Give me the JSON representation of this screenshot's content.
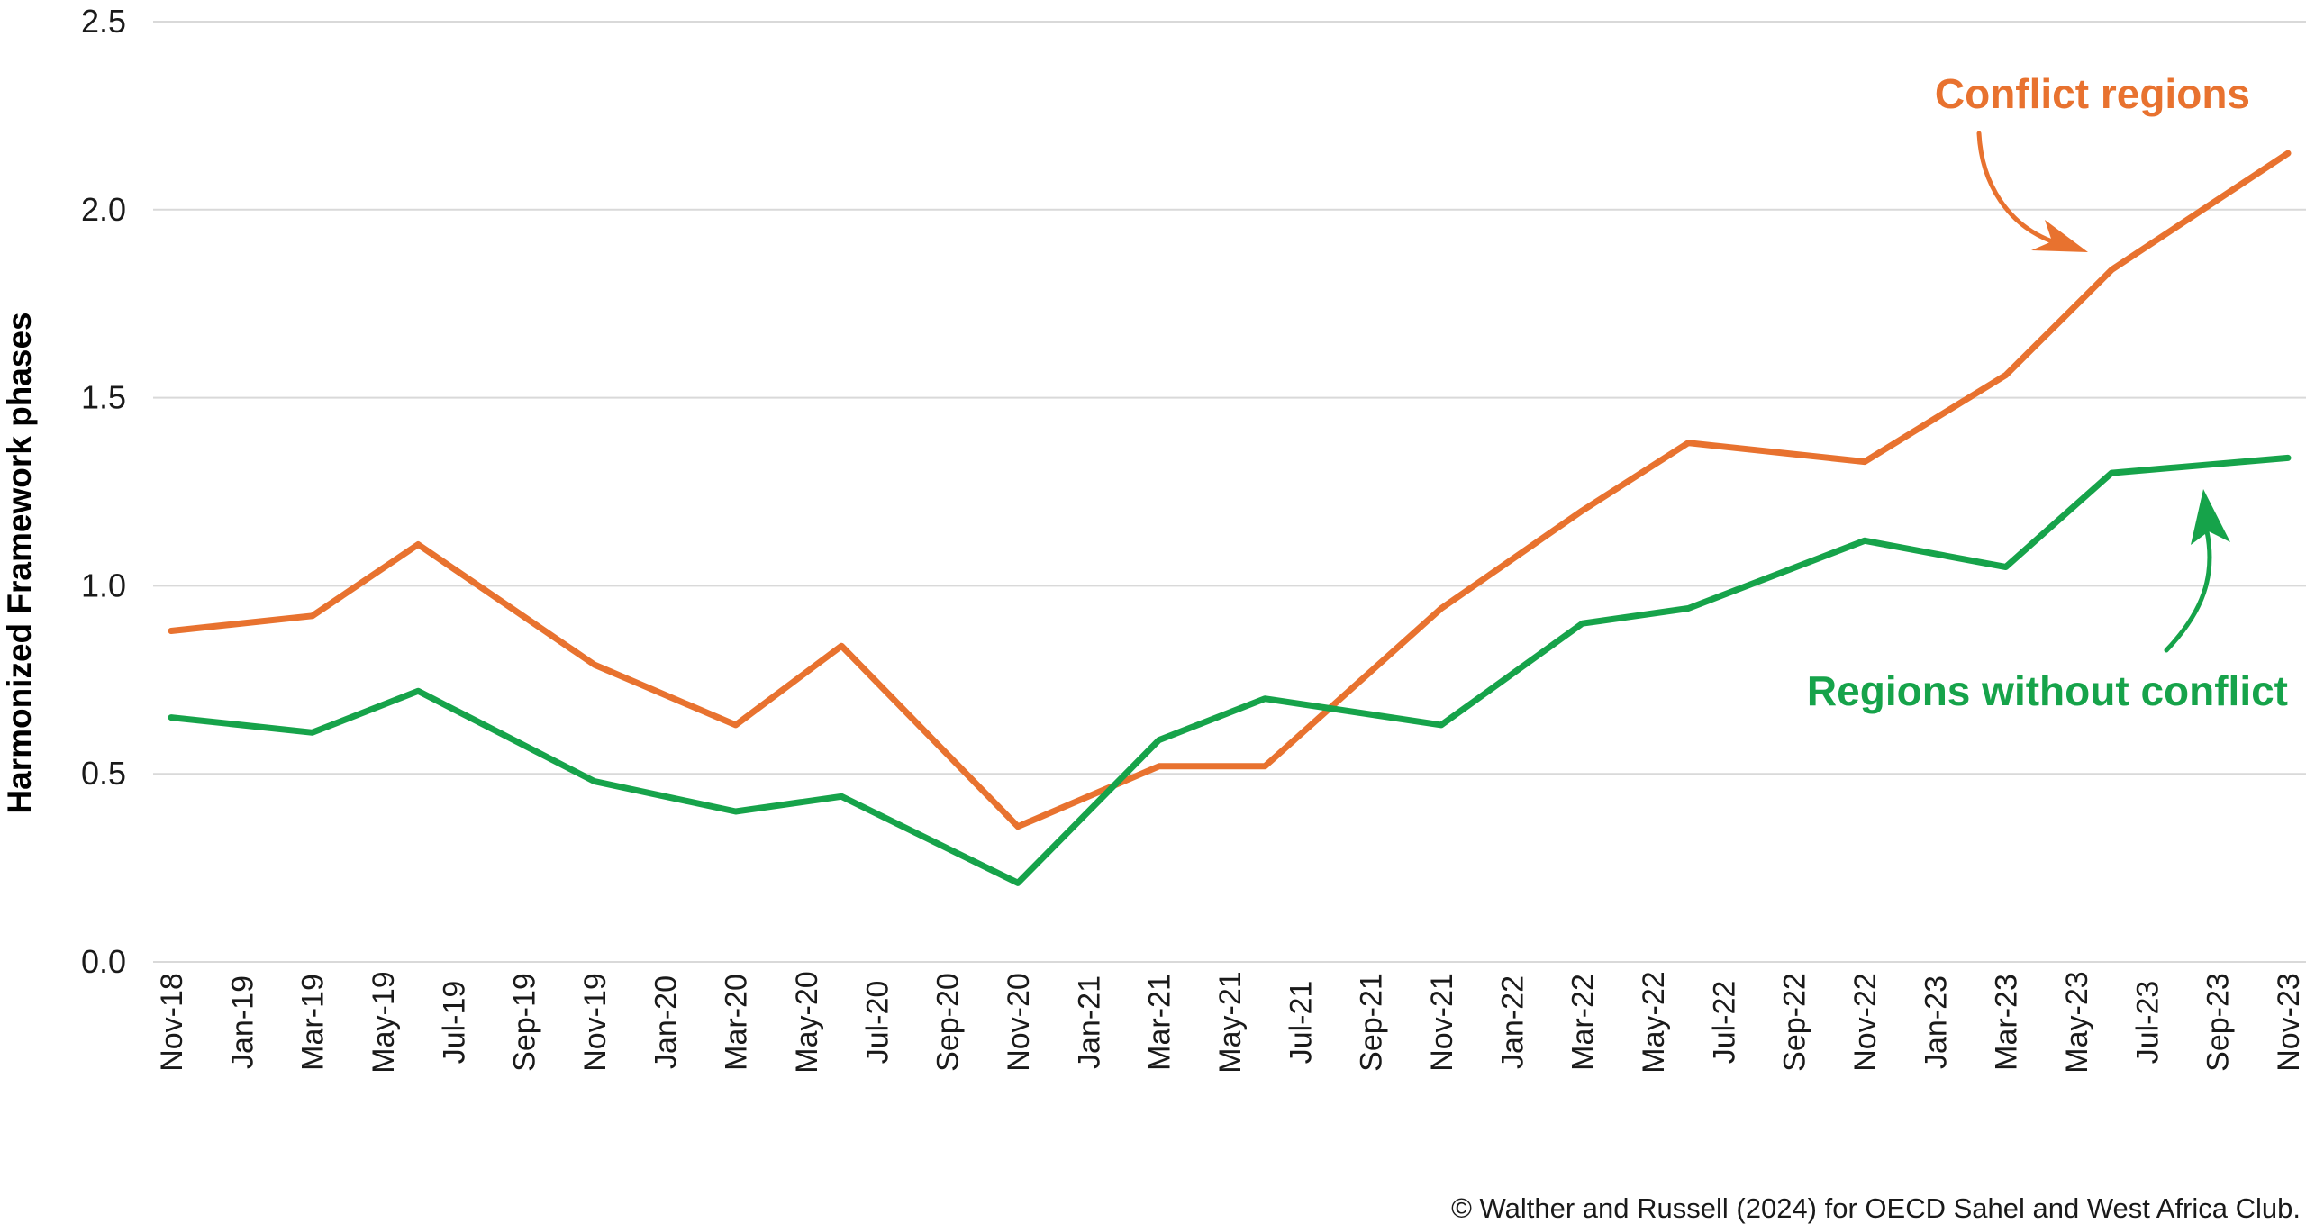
{
  "chart_data": {
    "type": "line",
    "ylabel": "Harmonized Framework phases",
    "xlabel": "",
    "ylim": [
      0,
      2.5
    ],
    "yticks": [
      "0.0",
      "0.5",
      "1.0",
      "1.5",
      "2.0",
      "2.5"
    ],
    "grid": true,
    "categories": [
      "Nov-18",
      "Jan-19",
      "Mar-19",
      "May-19",
      "Jul-19",
      "Sep-19",
      "Nov-19",
      "Jan-20",
      "Mar-20",
      "May-20",
      "Jul-20",
      "Sep-20",
      "Nov-20",
      "Jan-21",
      "Mar-21",
      "May-21",
      "Jul-21",
      "Sep-21",
      "Nov-21",
      "Jan-22",
      "Mar-22",
      "May-22",
      "Jul-22",
      "Sep-22",
      "Nov-22",
      "Jan-23",
      "Mar-23",
      "May-23",
      "Jul-23",
      "Sep-23",
      "Nov-23"
    ],
    "series": [
      {
        "name": "Conflict regions",
        "color": "#e8722f",
        "points": [
          [
            0,
            0.88
          ],
          [
            2,
            0.92
          ],
          [
            3.5,
            1.11
          ],
          [
            6,
            0.79
          ],
          [
            8,
            0.63
          ],
          [
            9.5,
            0.84
          ],
          [
            12,
            0.36
          ],
          [
            14,
            0.52
          ],
          [
            15.5,
            0.52
          ],
          [
            18,
            0.94
          ],
          [
            20,
            1.2
          ],
          [
            21.5,
            1.38
          ],
          [
            24,
            1.33
          ],
          [
            26,
            1.56
          ],
          [
            27.5,
            1.84
          ],
          [
            30,
            2.15
          ]
        ]
      },
      {
        "name": "Regions without conflict",
        "color": "#16a34a",
        "points": [
          [
            0,
            0.65
          ],
          [
            2,
            0.61
          ],
          [
            3.5,
            0.72
          ],
          [
            6,
            0.48
          ],
          [
            8,
            0.4
          ],
          [
            9.5,
            0.44
          ],
          [
            12,
            0.21
          ],
          [
            14,
            0.59
          ],
          [
            15.5,
            0.7
          ],
          [
            18,
            0.63
          ],
          [
            20,
            0.9
          ],
          [
            21.5,
            0.94
          ],
          [
            24,
            1.12
          ],
          [
            26,
            1.05
          ],
          [
            27.5,
            1.3
          ],
          [
            30,
            1.34
          ]
        ]
      }
    ],
    "annotations": {
      "conflict_label": "Conflict regions",
      "no_conflict_label": "Regions without conflict"
    }
  },
  "credit": "© Walther and Russell (2024) for OECD Sahel and West Africa Club."
}
